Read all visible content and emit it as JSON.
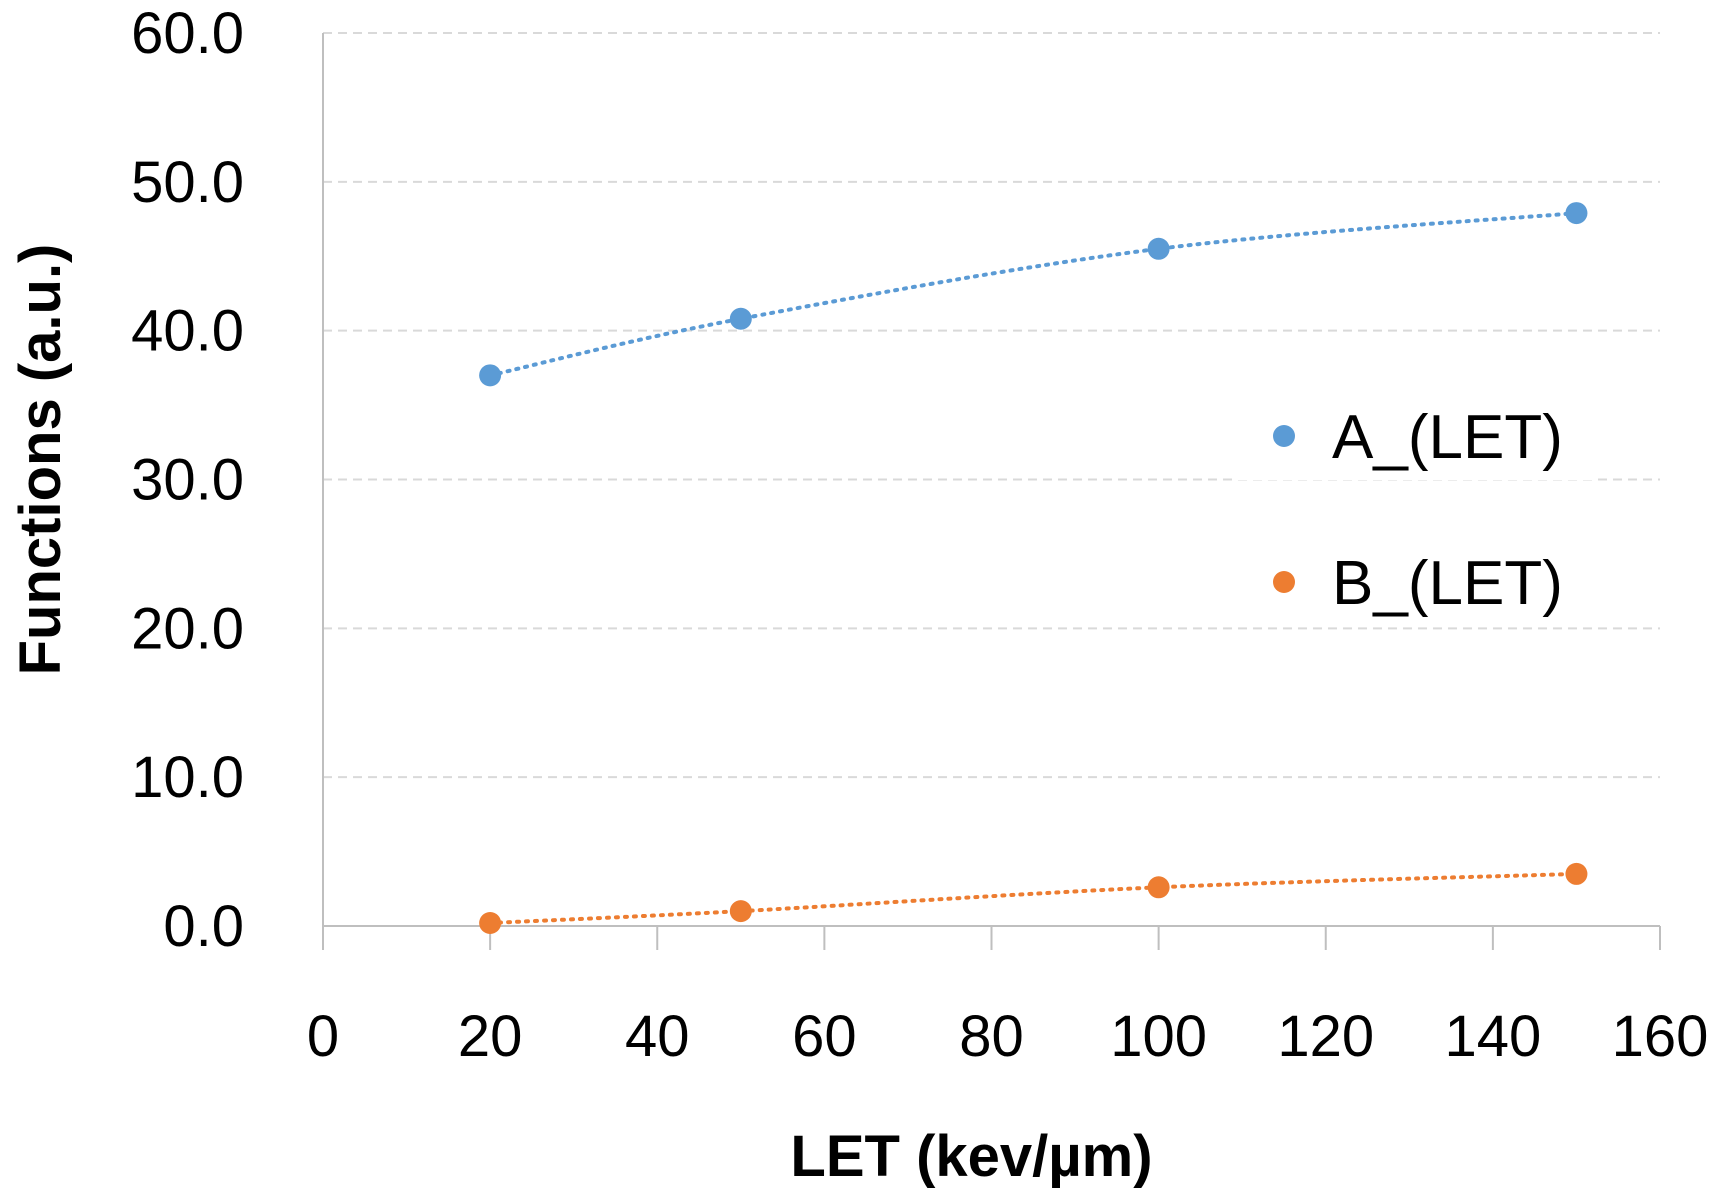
{
  "chart_data": {
    "type": "scatter",
    "xlabel": "LET (kev/µm)",
    "ylabel": "Functions (a.u.)",
    "xlim": [
      0,
      160
    ],
    "ylim": [
      0,
      60
    ],
    "x_ticks": [
      "0",
      "20",
      "40",
      "60",
      "80",
      "100",
      "120",
      "140",
      "160"
    ],
    "y_ticks": [
      "0.0",
      "10.0",
      "20.0",
      "30.0",
      "40.0",
      "50.0",
      "60.0"
    ],
    "grid": true,
    "legend_position": "right",
    "trendline": "dotted",
    "series": [
      {
        "name": "A_(LET)",
        "color": "#5b9bd5",
        "x": [
          20,
          50,
          100,
          150
        ],
        "y": [
          37.0,
          40.8,
          45.5,
          47.9
        ]
      },
      {
        "name": "B_(LET)",
        "color": "#ed7d31",
        "x": [
          20,
          50,
          100,
          150
        ],
        "y": [
          0.2,
          1.0,
          2.6,
          3.5
        ]
      }
    ]
  }
}
